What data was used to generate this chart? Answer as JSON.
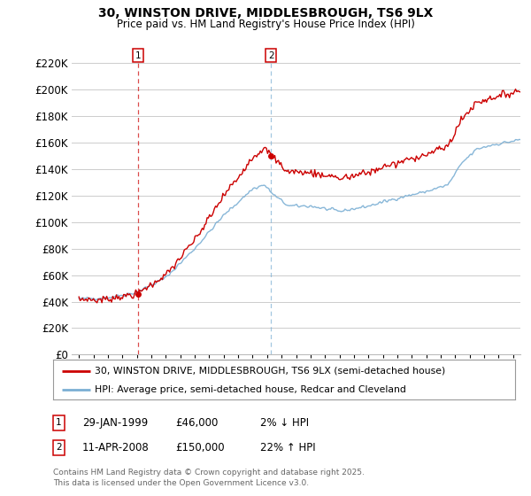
{
  "title": "30, WINSTON DRIVE, MIDDLESBROUGH, TS6 9LX",
  "subtitle": "Price paid vs. HM Land Registry's House Price Index (HPI)",
  "legend_line1": "30, WINSTON DRIVE, MIDDLESBROUGH, TS6 9LX (semi-detached house)",
  "legend_line2": "HPI: Average price, semi-detached house, Redcar and Cleveland",
  "footnote_line1": "Contains HM Land Registry data © Crown copyright and database right 2025.",
  "footnote_line2": "This data is licensed under the Open Government Licence v3.0.",
  "t1_date": "29-JAN-1999",
  "t1_price": "£46,000",
  "t1_change": "2% ↓ HPI",
  "t2_date": "11-APR-2008",
  "t2_price": "£150,000",
  "t2_change": "22% ↑ HPI",
  "marker1_x": 1999.08,
  "marker1_y": 46000,
  "marker2_x": 2008.28,
  "marker2_y": 150000,
  "vline1_x": 1999.08,
  "vline2_x": 2008.28,
  "ylim": [
    0,
    230000
  ],
  "xlim": [
    1994.5,
    2025.5
  ],
  "property_color": "#cc0000",
  "hpi_color": "#7bafd4",
  "background_color": "#ffffff",
  "grid_color": "#cccccc"
}
